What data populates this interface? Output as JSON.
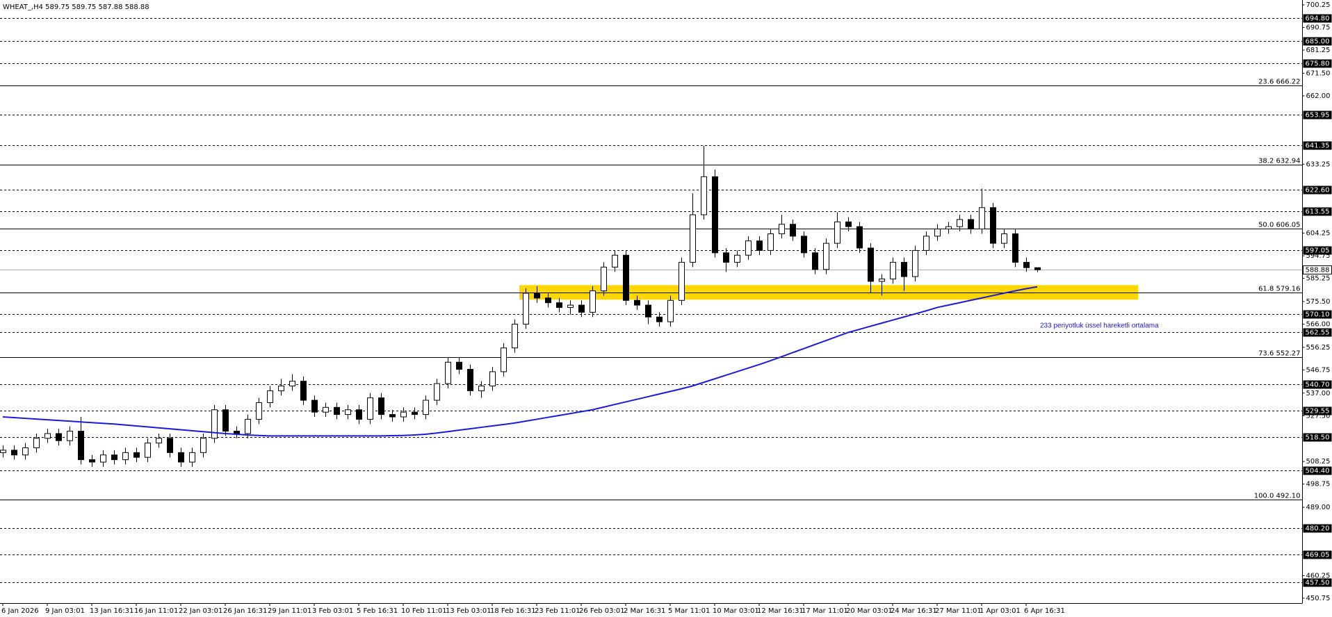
{
  "chart_data": {
    "type": "candlestick",
    "title": "WHEAT_,H4  589.75 589.75 587.88 588.88",
    "categories": [
      "6 Jan 2026",
      null,
      null,
      null,
      "9 Jan 03:01",
      null,
      null,
      null,
      "13 Jan 16:31",
      null,
      null,
      null,
      "16 Jan 11:01",
      null,
      null,
      null,
      "22 Jan 03:01",
      null,
      null,
      null,
      "26 Jan 16:31",
      null,
      null,
      null,
      "29 Jan 11:01",
      null,
      null,
      null,
      "3 Feb 03:01",
      null,
      null,
      null,
      "5 Feb 16:31",
      null,
      null,
      null,
      "10 Feb 11:01",
      null,
      null,
      null,
      "13 Feb 03:01",
      null,
      null,
      null,
      "18 Feb 16:31",
      null,
      null,
      null,
      "23 Feb 11:01",
      null,
      null,
      null,
      "26 Feb 03:01",
      null,
      null,
      null,
      "2 Mar 16:31",
      null,
      null,
      null,
      "5 Mar 11:01",
      null,
      null,
      null,
      "10 Mar 03:01",
      null,
      null,
      null,
      "12 Mar 16:31",
      null,
      null,
      null,
      "17 Mar 11:01",
      null,
      null,
      null,
      "20 Mar 03:01",
      null,
      null,
      null,
      "24 Mar 16:31",
      null,
      null,
      null,
      "27 Mar 11:01",
      null,
      null,
      null,
      "1 Apr 03:01",
      null,
      null,
      null,
      "6 Apr 16:31",
      null
    ],
    "open": [
      512,
      513,
      511,
      514,
      518,
      520,
      517,
      521,
      509,
      508,
      511,
      509,
      512,
      510,
      516,
      518,
      512,
      508,
      512,
      518,
      530,
      521,
      520,
      526,
      533,
      538,
      540,
      542,
      534,
      529,
      531,
      528,
      530,
      526,
      535,
      528,
      527,
      529,
      528,
      534,
      541,
      550,
      547,
      538,
      540,
      546,
      556,
      566,
      579,
      577,
      575,
      573,
      574,
      571,
      580,
      590,
      595,
      576,
      574,
      569,
      567,
      576,
      592,
      612,
      628,
      596,
      592,
      595,
      601,
      597,
      604,
      608,
      603,
      596,
      589,
      600,
      609,
      607,
      598,
      584,
      585,
      592,
      586,
      597,
      603,
      606,
      607,
      610,
      606,
      615,
      600,
      604,
      592,
      589.75
    ],
    "high": [
      515,
      515,
      516,
      520,
      522,
      522,
      523,
      527,
      511,
      513,
      513,
      514,
      514,
      518,
      520,
      520,
      514,
      514,
      520,
      532,
      532,
      523,
      528,
      535,
      540,
      543,
      545,
      544,
      536,
      533,
      533,
      532,
      532,
      537,
      537,
      530,
      531,
      531,
      536,
      543,
      552,
      552,
      549,
      542,
      548,
      558,
      568,
      581,
      582,
      579,
      577,
      576,
      576,
      582,
      592,
      597,
      597,
      578,
      576,
      571,
      578,
      594,
      621,
      641,
      631,
      598,
      597,
      603,
      603,
      606,
      612,
      610,
      605,
      598,
      602,
      613,
      611,
      609,
      600,
      587,
      594,
      594,
      599,
      605,
      608,
      609,
      612,
      612,
      623,
      617,
      606,
      606,
      594,
      589.75
    ],
    "low": [
      510,
      509,
      509,
      512,
      516,
      515,
      515,
      507,
      506,
      506,
      507,
      507,
      508,
      508,
      514,
      510,
      506,
      506,
      510,
      516,
      519,
      518,
      518,
      524,
      531,
      536,
      538,
      532,
      527,
      527,
      526,
      526,
      524,
      524,
      526,
      525,
      525,
      526,
      526,
      532,
      539,
      545,
      536,
      535,
      538,
      544,
      554,
      564,
      575,
      573,
      571,
      570,
      569,
      569,
      578,
      588,
      574,
      572,
      566,
      565,
      565,
      574,
      590,
      610,
      594,
      588,
      590,
      593,
      595,
      595,
      602,
      601,
      594,
      587,
      587,
      598,
      605,
      596,
      579,
      578,
      583,
      580,
      584,
      595,
      601,
      604,
      605,
      604,
      604,
      598,
      598,
      590,
      588,
      587.88
    ],
    "close": [
      513,
      511,
      514,
      518,
      520,
      517,
      521,
      509,
      508,
      511,
      509,
      512,
      510,
      516,
      518,
      512,
      508,
      512,
      518,
      530,
      521,
      520,
      526,
      533,
      538,
      540,
      542,
      534,
      529,
      531,
      528,
      530,
      526,
      535,
      528,
      527,
      529,
      528,
      534,
      541,
      550,
      547,
      538,
      540,
      546,
      556,
      566,
      579,
      577,
      575,
      573,
      574,
      571,
      580,
      590,
      595,
      576,
      574,
      569,
      567,
      576,
      592,
      612,
      628,
      596,
      592,
      595,
      601,
      597,
      604,
      608,
      603,
      596,
      589,
      600,
      609,
      607,
      598,
      584,
      585,
      592,
      586,
      597,
      603,
      606,
      607,
      610,
      606,
      615,
      600,
      604,
      592,
      589.75,
      588.88
    ],
    "bull_color": "#ffffff",
    "bear_color": "#000000",
    "ma": {
      "name": "233 periyotluk üssel hareketli ortalama",
      "color": "#1a1ad8",
      "values": [
        527,
        526.7,
        526.4,
        526.1,
        525.8,
        525.5,
        525.2,
        524.9,
        524.6,
        524.3,
        524,
        523.6,
        523.2,
        522.8,
        522.4,
        522,
        521.6,
        521.2,
        520.8,
        520.4,
        520,
        519.7,
        519.4,
        519.2,
        519,
        519,
        519,
        519,
        519,
        519,
        519,
        519,
        519,
        519,
        519,
        519.1,
        519.2,
        519.4,
        519.7,
        520.2,
        520.8,
        521.4,
        522,
        522.6,
        523.2,
        523.8,
        524.4,
        525.2,
        526,
        526.8,
        527.6,
        528.4,
        529.2,
        530,
        531.1,
        532.2,
        533.3,
        534.4,
        535.5,
        536.6,
        537.7,
        538.8,
        540,
        541.5,
        543,
        544.5,
        546,
        547.5,
        549,
        550.6,
        552.3,
        554,
        555.7,
        557.4,
        559.1,
        560.8,
        562.5,
        563.8,
        565.1,
        566.4,
        567.7,
        569,
        570.3,
        571.6,
        573,
        574,
        575,
        576,
        577,
        578,
        579,
        580,
        580.9,
        581.7
      ]
    },
    "zone": {
      "low": 576.3,
      "high": 582.4,
      "color": "#ffd700"
    },
    "ylim": [
      450.75,
      700.25
    ],
    "yticks": [
      700.25,
      690.75,
      681.25,
      {
        "value": 671.5,
        "label": "671.50"
      },
      {
        "value": 662,
        "label": "662.00"
      },
      633.25,
      604.25,
      594.75,
      585.25,
      {
        "value": 575.5,
        "label": "575.50"
      },
      {
        "value": 566,
        "label": "566.00"
      },
      556.25,
      546.75,
      {
        "value": 537,
        "label": "537.00"
      },
      {
        "value": 527.5,
        "label": "527.50"
      },
      508.25,
      498.75,
      {
        "value": 489,
        "label": "489.00"
      },
      460.25,
      450.75
    ],
    "levels": [
      {
        "value": 694.8,
        "label": "694.80"
      },
      {
        "value": 685,
        "label": "685.00"
      },
      {
        "value": 675.8,
        "label": "675.80"
      },
      {
        "value": 653.95,
        "label": "653.95"
      },
      {
        "value": 641.35,
        "label": "641.35"
      },
      {
        "value": 622.6,
        "label": "622.60"
      },
      {
        "value": 613.55,
        "label": "613.55"
      },
      {
        "value": 597.05,
        "label": "597.05"
      },
      {
        "value": 570.1,
        "label": "570.10"
      },
      {
        "value": 562.55,
        "label": "562.55"
      },
      {
        "value": 540.7,
        "label": "540.70"
      },
      {
        "value": 529.55,
        "label": "529.55"
      },
      {
        "value": 518.5,
        "label": "518.50"
      },
      {
        "value": 504.4,
        "label": "504.40"
      },
      {
        "value": 480.2,
        "label": "480.20"
      },
      {
        "value": 469.05,
        "label": "469.05"
      },
      {
        "value": 457.5,
        "label": "457.50"
      }
    ],
    "current_price": {
      "value": 588.88,
      "label": "588.88"
    },
    "fib_levels": [
      {
        "value": 666.22,
        "label": "23.6 666.22"
      },
      {
        "value": 632.94,
        "label": "38.2 632.94"
      },
      {
        "value": 606.05,
        "label": "50.0 606.05"
      },
      {
        "value": 579.16,
        "label": "61.8 579.16"
      },
      {
        "value": 552.27,
        "label": "73.6 552.27"
      },
      {
        "value": 492.1,
        "label": "100.0 492.10"
      }
    ]
  }
}
